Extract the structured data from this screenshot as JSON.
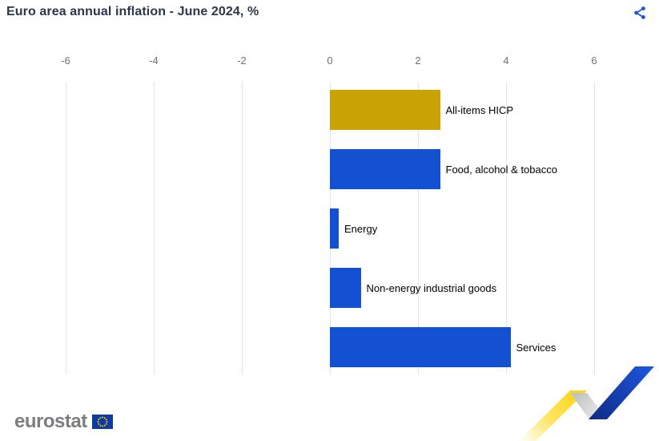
{
  "header": {
    "title": "Euro area annual inflation - June 2024, %"
  },
  "chart_data": {
    "type": "bar",
    "orientation": "horizontal",
    "title": "Euro area annual inflation - June 2024, %",
    "categories": [
      "All-items HICP",
      "Food, alcohol & tobacco",
      "Energy",
      "Non-energy industrial goods",
      "Services"
    ],
    "values": [
      2.5,
      2.5,
      0.2,
      0.7,
      4.1
    ],
    "unit": "%",
    "xlim": [
      -6,
      6
    ],
    "xticks": [
      -6,
      -4,
      -2,
      0,
      2,
      4,
      6
    ],
    "tick_labels": [
      "-6",
      "-4",
      "-2",
      "0",
      "2",
      "4",
      "6"
    ],
    "axis_position": "top",
    "grid": true,
    "legend": false,
    "bar_colors": [
      "#C9A203",
      "#1350D2",
      "#1350D2",
      "#1350D2",
      "#1350D2"
    ]
  },
  "footer": {
    "logo_text": "eurostat"
  },
  "colors": {
    "title_text": "#2B3648",
    "axis_text": "#6E7079",
    "grid_line": "#DFE5F0",
    "category_text": "#000000",
    "bar_gold": "#C9A203",
    "bar_blue": "#1350D2",
    "share_icon": "#1A56DB",
    "logo_text_gray": "#7B7D80",
    "eu_flag_blue": "#0C3BA4",
    "eu_star_gold": "#FFCC00",
    "ribbon_yellow": "#FFD514",
    "ribbon_gray": "#C2C2C2",
    "ribbon_blue": "#1C55DC"
  }
}
